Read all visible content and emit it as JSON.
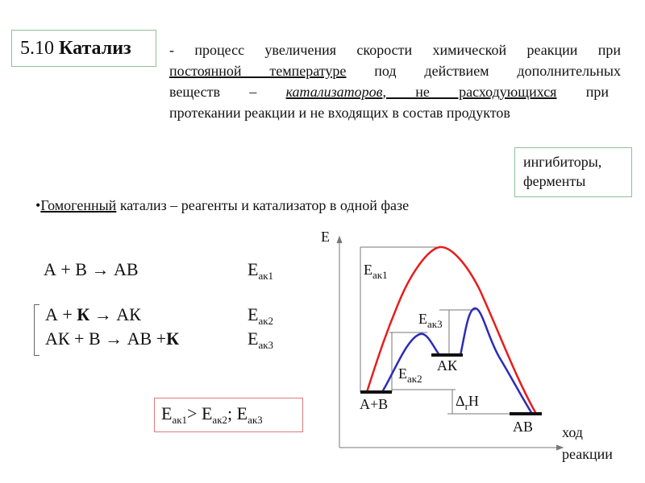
{
  "title": {
    "number": "5.10",
    "word": "Катализ"
  },
  "definition": {
    "line1": "- процесс увеличения скорости химической реакции при",
    "line2_u": "постоянной температуре",
    "line2_rest": " под действием дополнительных",
    "line3_a": "веществ – ",
    "line3_u1": "катализаторов",
    "line3_u2": ", не расходующихся",
    "line3_rest": " при",
    "line4": "протекании реакции и не входящих в состав продуктов"
  },
  "side_box": {
    "line1": "ингибиторы,",
    "line2": "ферменты"
  },
  "bullet": {
    "marker": "•",
    "u": "Гомогенный",
    "rest": " катализ – реагенты и катализатор в одной фазе"
  },
  "equations": [
    {
      "text": "А + В → АВ",
      "E": "E",
      "sub": "ак1"
    },
    {
      "pre": "А + ",
      "bold": "К",
      "post": " → АК",
      "E": "E",
      "sub": "ак2"
    },
    {
      "pre": "АК + В → АВ +",
      "bold": "К",
      "post": "",
      "E": "E",
      "sub": "ак3"
    }
  ],
  "comparison": {
    "e1": "E",
    "s1": "ак1",
    "op": ">",
    "e2": "E",
    "s2": "ак2",
    "sep": "; ",
    "e3": "E",
    "s3": "ак3"
  },
  "diagram": {
    "y_axis": "E",
    "x_axis_1": "ход",
    "x_axis_2": "реакции",
    "levels": {
      "reactants": "А+В",
      "intermediate": "АК",
      "product": "АВ"
    },
    "labels": {
      "e1": "E",
      "s1": "ак1",
      "e2": "E",
      "s2": "ак2",
      "e3": "E",
      "s3": "ак3",
      "dh": "Δ",
      "dh_sub": "r",
      "dh_h": "H"
    },
    "colors": {
      "uncatalyzed": "#e81c1c",
      "catalyzed": "#2b2bb8"
    }
  }
}
